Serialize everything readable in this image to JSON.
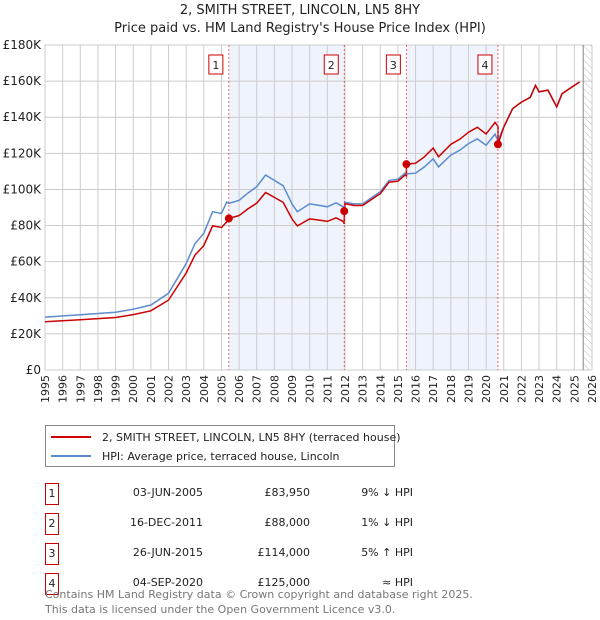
{
  "chart_data": {
    "type": "line",
    "title": "2, SMITH STREET, LINCOLN, LN5 8HY",
    "subtitle": "Price paid vs. HM Land Registry's House Price Index (HPI)",
    "xlim": [
      1995,
      2026
    ],
    "ylim": [
      0,
      180000
    ],
    "x_ticks": [
      "1995",
      "1996",
      "1997",
      "1998",
      "1999",
      "2000",
      "2001",
      "2002",
      "2003",
      "2004",
      "2005",
      "2006",
      "2007",
      "2008",
      "2009",
      "2010",
      "2011",
      "2012",
      "2013",
      "2014",
      "2015",
      "2016",
      "2017",
      "2018",
      "2019",
      "2020",
      "2021",
      "2022",
      "2023",
      "2024",
      "2025",
      "2026"
    ],
    "y_ticks": [
      {
        "v": 0,
        "label": "£0"
      },
      {
        "v": 20000,
        "label": "£20K"
      },
      {
        "v": 40000,
        "label": "£40K"
      },
      {
        "v": 60000,
        "label": "£60K"
      },
      {
        "v": 80000,
        "label": "£80K"
      },
      {
        "v": 100000,
        "label": "£100K"
      },
      {
        "v": 120000,
        "label": "£120K"
      },
      {
        "v": 140000,
        "label": "£140K"
      },
      {
        "v": 160000,
        "label": "£160K"
      },
      {
        "v": 180000,
        "label": "£180K"
      }
    ],
    "grid": true,
    "x": [
      1995,
      1997,
      1999,
      2000,
      2001,
      2002,
      2003,
      2003.5,
      2004,
      2004.5,
      2005,
      2005.3,
      2005.42,
      2006,
      2006.5,
      2007,
      2007.5,
      2008,
      2008.5,
      2009,
      2009.3,
      2010,
      2010.5,
      2011,
      2011.5,
      2011.9,
      2011.96,
      2011.96,
      2012,
      2012.5,
      2013,
      2014,
      2014.5,
      2015,
      2015.4,
      2015.48,
      2015.48,
      2016,
      2016.5,
      2017,
      2017.3,
      2018,
      2018.5,
      2019,
      2019.5,
      2020,
      2020.5,
      2020.67,
      2020.67,
      2021,
      2021.5,
      2022,
      2022.5,
      2022.8,
      2023,
      2023.5,
      2024,
      2024.3,
      2024.6,
      2025,
      2025.3
    ],
    "series": [
      {
        "name": "2, SMITH STREET, LINCOLN, LN5 8HY (terraced house)",
        "color": "#cc0000",
        "values": [
          26700,
          27800,
          29100,
          30700,
          32800,
          38700,
          53700,
          63700,
          68900,
          79800,
          78900,
          82000,
          83950,
          85500,
          89200,
          92400,
          98300,
          95600,
          92800,
          83700,
          79800,
          83700,
          83100,
          82300,
          84300,
          82300,
          81000,
          88000,
          92100,
          91100,
          91100,
          97700,
          104000,
          104600,
          107900,
          107500,
          114000,
          114500,
          118100,
          122900,
          118100,
          125000,
          127800,
          131700,
          134400,
          130700,
          137100,
          135000,
          125000,
          134600,
          144700,
          148400,
          151000,
          157600,
          154000,
          155000,
          145700,
          153000,
          155000,
          157600,
          159500
        ]
      },
      {
        "name": "HPI: Average price, terraced house, Lincoln",
        "color": "#5b8bd0",
        "values": [
          29300,
          30600,
          32000,
          33700,
          36000,
          42500,
          59000,
          70000,
          75700,
          87700,
          86700,
          93000,
          92300,
          94000,
          98000,
          101500,
          108000,
          105000,
          102000,
          92000,
          87700,
          92000,
          91300,
          90400,
          92600,
          90400,
          89000,
          89000,
          93000,
          92000,
          92000,
          98700,
          105000,
          105700,
          109000,
          108600,
          108600,
          109000,
          112500,
          117000,
          112500,
          119000,
          121700,
          125400,
          128000,
          124500,
          130600,
          127000,
          127000,
          134600,
          144700,
          148400,
          151000,
          157600,
          154000,
          155000,
          145700,
          153000,
          155000,
          157600,
          159500
        ]
      }
    ],
    "sales": [
      {
        "label": "1",
        "x": 2005.42,
        "value": 83950,
        "date": "03-JUN-2005",
        "price": "£83,950",
        "hpi": "9% ↓ HPI"
      },
      {
        "label": "2",
        "x": 2011.96,
        "value": 88000,
        "date": "16-DEC-2011",
        "price": "£88,000",
        "hpi": "1% ↓ HPI"
      },
      {
        "label": "3",
        "x": 2015.48,
        "value": 114000,
        "date": "26-JUN-2015",
        "price": "£114,000",
        "hpi": "5% ↑ HPI"
      },
      {
        "label": "4",
        "x": 2020.67,
        "value": 125000,
        "date": "04-SEP-2020",
        "price": "£125,000",
        "hpi": "≈ HPI"
      }
    ],
    "forecast_from": 2025.5,
    "legend_placement": "below"
  },
  "footer": {
    "line1": "Contains HM Land Registry data © Crown copyright and database right 2025.",
    "line2": "This data is licensed under the Open Government Licence v3.0."
  }
}
